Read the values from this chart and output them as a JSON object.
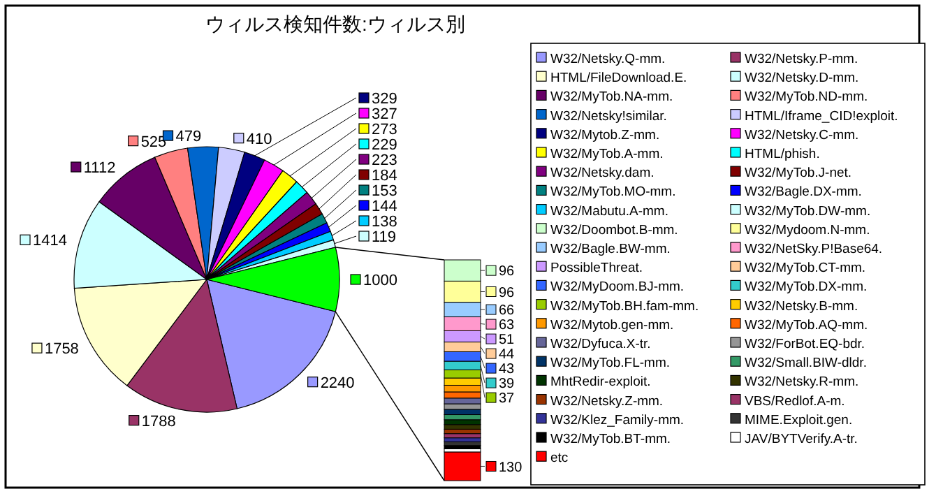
{
  "chart_data": [
    {
      "type": "pie",
      "title": "ウィルス検知件数:ウィルス別",
      "data_labels": true,
      "legend": "right",
      "categories": [
        "W32/Netsky.Q-mm.",
        "W32/Netsky.P-mm.",
        "HTML/FileDownload.E.",
        "W32/Netsky.D-mm.",
        "W32/MyTob.NA-mm.",
        "W32/MyTob.ND-mm.",
        "W32/Netsky!similar.",
        "HTML/Iframe_CID!exploit.",
        "W32/Mytob.Z-mm.",
        "W32/Netsky.C-mm.",
        "W32/MyTob.A-mm.",
        "HTML/phish.",
        "W32/Netsky.dam.",
        "W32/MyTob.J-net.",
        "W32/MyTob.MO-mm.",
        "W32/Bagle.DX-mm.",
        "W32/Mabutu.A-mm.",
        "W32/MyTob.DW-mm.",
        null
      ],
      "values": [
        2240,
        1788,
        1758,
        1414,
        1112,
        525,
        479,
        410,
        329,
        327,
        273,
        229,
        223,
        184,
        153,
        144,
        138,
        119,
        1000
      ],
      "colors": [
        "#9999ff",
        "#993366",
        "#ffffcc",
        "#ccffff",
        "#660066",
        "#ff8080",
        "#0066cc",
        "#ccccff",
        "#000080",
        "#ff00ff",
        "#ffff00",
        "#00ffff",
        "#800080",
        "#800000",
        "#008080",
        "#0000ff",
        "#00ccff",
        "#ccffff",
        "#00ff00"
      ]
    },
    {
      "type": "bar",
      "stacked": true,
      "legend": "right",
      "categories": [
        null
      ],
      "series": [
        {
          "name": "etc",
          "color": "#ff0000",
          "values": [
            130
          ],
          "value_labels": [
            "130"
          ]
        },
        {
          "name": "JAV/BYTVerify.A-tr.",
          "color": "#ffffff",
          "values": [
            14
          ],
          "value_labels": [
            null
          ]
        },
        {
          "name": "W32/MyTob.BT-mm.",
          "color": "#000000",
          "values": [
            15
          ],
          "value_labels": [
            null
          ]
        },
        {
          "name": "MIME.Exploit.gen.",
          "color": "#333333",
          "values": [
            17
          ],
          "value_labels": [
            null
          ]
        },
        {
          "name": "W32/Klez_Family-mm.",
          "color": "#333399",
          "values": [
            18
          ],
          "value_labels": [
            null
          ]
        },
        {
          "name": "VBS/Redlof.A-m.",
          "color": "#993366",
          "values": [
            19
          ],
          "value_labels": [
            null
          ]
        },
        {
          "name": "W32/Netsky.Z-mm.",
          "color": "#993300",
          "values": [
            20
          ],
          "value_labels": [
            null
          ]
        },
        {
          "name": "W32/Netsky.R-mm.",
          "color": "#333300",
          "values": [
            21
          ],
          "value_labels": [
            null
          ]
        },
        {
          "name": "MhtRedir-exploit.",
          "color": "#003300",
          "values": [
            22
          ],
          "value_labels": [
            null
          ]
        },
        {
          "name": "W32/Small.BIW-dldr.",
          "color": "#339966",
          "values": [
            23
          ],
          "value_labels": [
            null
          ]
        },
        {
          "name": "W32/MyTob.FL-mm.",
          "color": "#003366",
          "values": [
            24
          ],
          "value_labels": [
            null
          ]
        },
        {
          "name": "W32/ForBot.EQ-bdr.",
          "color": "#969696",
          "values": [
            25
          ],
          "value_labels": [
            null
          ]
        },
        {
          "name": "W32/Dyfuca.X-tr.",
          "color": "#666699",
          "values": [
            26
          ],
          "value_labels": [
            null
          ]
        },
        {
          "name": "W32/MyTob.AQ-mm.",
          "color": "#ff6600",
          "values": [
            28
          ],
          "value_labels": [
            null
          ]
        },
        {
          "name": "W32/Mytob.gen-mm.",
          "color": "#ff9900",
          "values": [
            30
          ],
          "value_labels": [
            null
          ]
        },
        {
          "name": "W32/Netsky.B-mm.",
          "color": "#ffcc00",
          "values": [
            33
          ],
          "value_labels": [
            null
          ]
        },
        {
          "name": "W32/MyTob.BH.fam-mm.",
          "color": "#99cc00",
          "values": [
            37
          ],
          "value_labels": [
            "37"
          ]
        },
        {
          "name": "W32/MyTob.DX-mm.",
          "color": "#33cccc",
          "values": [
            39
          ],
          "value_labels": [
            "39"
          ]
        },
        {
          "name": "W32/MyDoom.BJ-mm.",
          "color": "#3366ff",
          "values": [
            43
          ],
          "value_labels": [
            "43"
          ]
        },
        {
          "name": "W32/MyTob.CT-mm.",
          "color": "#ffcc99",
          "values": [
            44
          ],
          "value_labels": [
            "44"
          ]
        },
        {
          "name": "PossibleThreat.",
          "color": "#cc99ff",
          "values": [
            51
          ],
          "value_labels": [
            "51"
          ]
        },
        {
          "name": "W32/NetSky.P!Base64.",
          "color": "#ff99cc",
          "values": [
            63
          ],
          "value_labels": [
            "63"
          ]
        },
        {
          "name": "W32/Bagle.BW-mm.",
          "color": "#99ccff",
          "values": [
            66
          ],
          "value_labels": [
            "66"
          ]
        },
        {
          "name": "W32/Mydoom.N-mm.",
          "color": "#ffff99",
          "values": [
            96
          ],
          "value_labels": [
            "96"
          ]
        },
        {
          "name": "W32/Doombot.B-mm.",
          "color": "#ccffcc",
          "values": [
            96
          ],
          "value_labels": [
            "96"
          ]
        }
      ]
    }
  ]
}
